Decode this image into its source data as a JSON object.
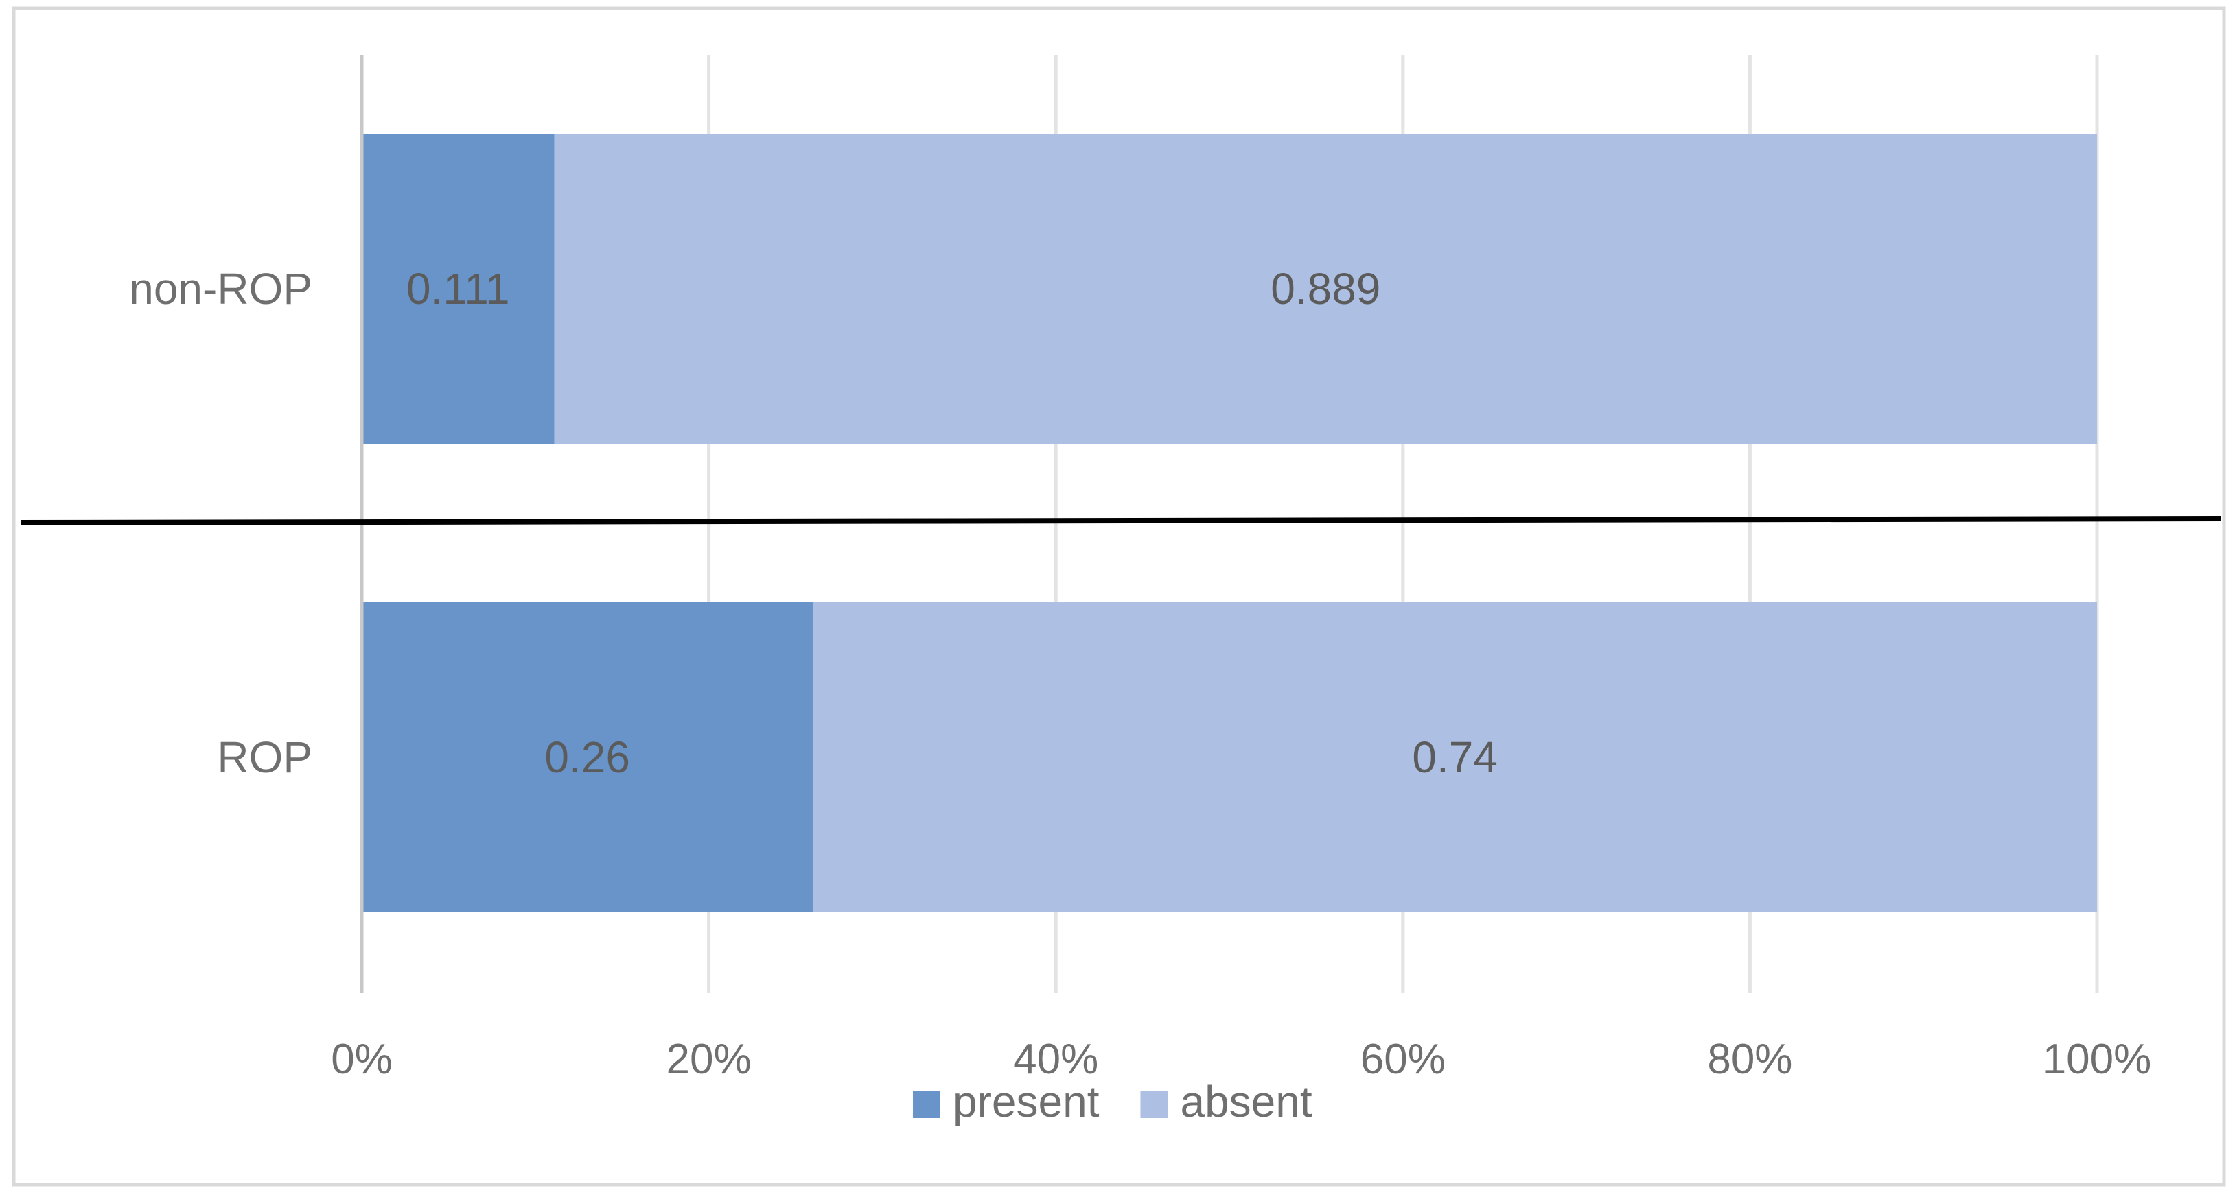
{
  "chart_data": {
    "type": "bar",
    "orientation": "horizontal",
    "stacked": "percent",
    "categories": [
      "non-ROP",
      "ROP"
    ],
    "series": [
      {
        "name": "present",
        "values": [
          0.111,
          0.26
        ],
        "labels": [
          "0.111",
          "0.26"
        ],
        "color": "#6894c9"
      },
      {
        "name": "absent",
        "values": [
          0.889,
          0.74
        ],
        "labels": [
          "0.889",
          "0.74"
        ],
        "color": "#adbfe2"
      }
    ],
    "xlim": [
      0,
      1
    ],
    "x_ticks": [
      0,
      0.2,
      0.4,
      0.6,
      0.8,
      1.0
    ],
    "x_tick_labels": [
      "0%",
      "20%",
      "40%",
      "60%",
      "80%",
      "100%"
    ],
    "title": "",
    "xlabel": "",
    "ylabel": "",
    "grid": "vertical",
    "legend": "bottom",
    "separator_line": true
  }
}
